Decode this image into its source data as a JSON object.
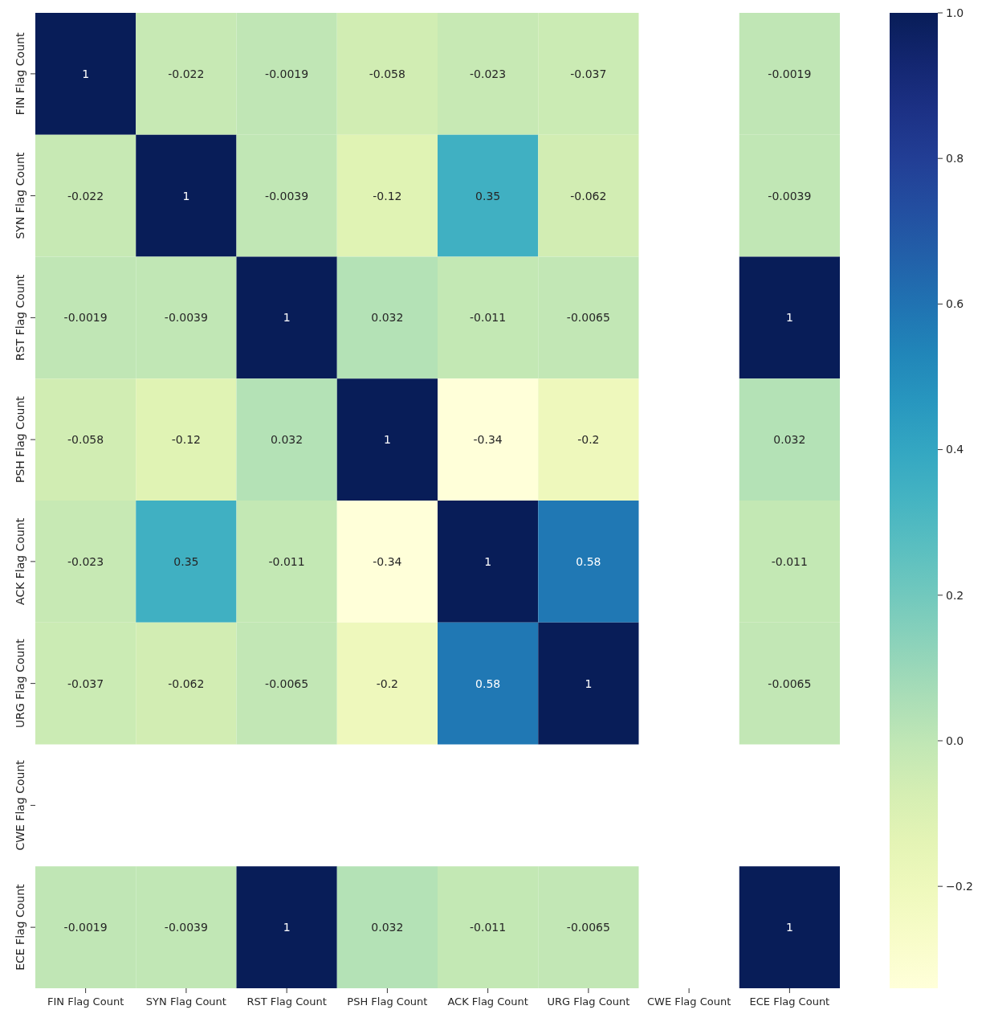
{
  "chart_data": {
    "type": "heatmap",
    "categories": [
      "FIN Flag Count",
      "SYN Flag Count",
      "RST Flag Count",
      "PSH Flag Count",
      "ACK Flag Count",
      "URG Flag Count",
      "CWE Flag Count",
      "ECE Flag Count"
    ],
    "y_categories": [
      "FIN Flag Count",
      "SYN Flag Count",
      "RST Flag Count",
      "PSH Flag Count",
      "ACK Flag Count",
      "URG Flag Count",
      "CWE Flag Count",
      "ECE Flag Count"
    ],
    "cells": [
      [
        1,
        -0.022,
        -0.0019,
        -0.058,
        -0.023,
        -0.037,
        null,
        -0.0019
      ],
      [
        -0.022,
        1,
        -0.0039,
        -0.12,
        0.35,
        -0.062,
        null,
        -0.0039
      ],
      [
        -0.0019,
        -0.0039,
        1,
        0.032,
        -0.011,
        -0.0065,
        null,
        1
      ],
      [
        -0.058,
        -0.12,
        0.032,
        1,
        -0.34,
        -0.2,
        null,
        0.032
      ],
      [
        -0.023,
        0.35,
        -0.011,
        -0.34,
        1,
        0.58,
        null,
        -0.011
      ],
      [
        -0.037,
        -0.062,
        -0.0065,
        -0.2,
        0.58,
        1,
        null,
        -0.0065
      ],
      [
        null,
        null,
        null,
        null,
        null,
        null,
        null,
        null
      ],
      [
        -0.0019,
        -0.0039,
        1,
        0.032,
        -0.011,
        -0.0065,
        null,
        1
      ]
    ],
    "clim": [
      -0.34,
      1
    ],
    "cticks": [
      {
        "value": -0.2,
        "label": "−0.2"
      },
      {
        "value": 0,
        "label": "0.0"
      },
      0.2,
      0.4,
      0.6,
      0.8,
      {
        "value": 1,
        "label": "1.0"
      }
    ],
    "data_labels": true
  }
}
